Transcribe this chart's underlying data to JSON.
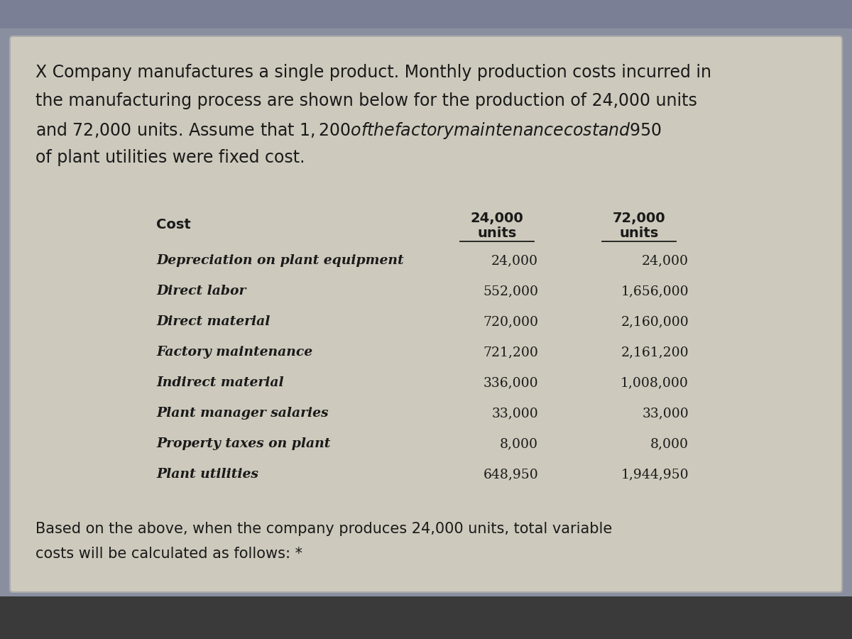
{
  "outer_bg_color": "#8a8fa0",
  "top_bar_color": "#7a7f95",
  "panel_color": "#cdc9bc",
  "title_line1": "X Company manufactures a single product. Monthly production costs incurred in",
  "title_line2": "the manufacturing process are shown below for the production of 24,000 units",
  "title_line3": "and 72,000 units. Assume that $1,200 of the factory maintenance cost and $950",
  "title_line4": "of plant utilities were fixed cost.",
  "col1_header": "Cost",
  "col2_header_line1": "24,000",
  "col2_header_line2": "units",
  "col3_header_line1": "72,000",
  "col3_header_line2": "units",
  "rows": [
    [
      "Depreciation on plant equipment",
      "24,000",
      "24,000"
    ],
    [
      "Direct labor",
      "552,000",
      "1,656,000"
    ],
    [
      "Direct material",
      "720,000",
      "2,160,000"
    ],
    [
      "Factory maintenance",
      "721,200",
      "2,161,200"
    ],
    [
      "Indirect material",
      "336,000",
      "1,008,000"
    ],
    [
      "Plant manager salaries",
      "33,000",
      "33,000"
    ],
    [
      "Property taxes on plant",
      "8,000",
      "8,000"
    ],
    [
      "Plant utilities",
      "648,950",
      "1,944,950"
    ]
  ],
  "footer_line1": "Based on the above, when the company produces 24,000 units, total variable",
  "footer_line2": "costs will be calculated as follows: *",
  "text_color": "#1a1a1a"
}
